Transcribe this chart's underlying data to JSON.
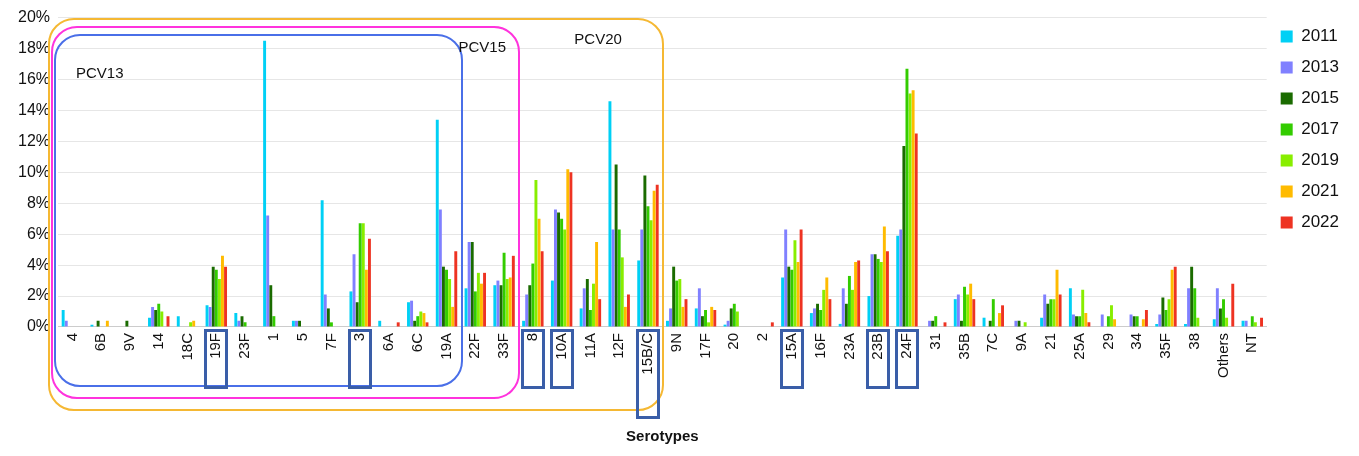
{
  "chart_data": {
    "type": "bar",
    "xlabel": "Serotypes",
    "categories": [
      "4",
      "6B",
      "9V",
      "14",
      "18C",
      "19F",
      "23F",
      "1",
      "5",
      "7F",
      "3",
      "6A",
      "6C",
      "19A",
      "22F",
      "33F",
      "8",
      "10A",
      "11A",
      "12F",
      "15B/C",
      "9N",
      "17F",
      "20",
      "2",
      "15A",
      "16F",
      "23A",
      "23B",
      "24F",
      "31",
      "35B",
      "7C",
      "9A",
      "21",
      "25A",
      "29",
      "34",
      "35F",
      "38",
      "Others",
      "NT"
    ],
    "series": [
      {
        "name": "2011",
        "color": "#00d0f5",
        "values": [
          1.1,
          0.15,
          0,
          0.6,
          0.7,
          1.4,
          0.9,
          18.5,
          0.4,
          8.2,
          2.3,
          0.4,
          1.6,
          13.4,
          2.5,
          2.7,
          0.4,
          3.0,
          1.2,
          14.6,
          4.3,
          0.4,
          1.2,
          0.15,
          0,
          3.2,
          0.9,
          0.2,
          2.0,
          5.9,
          0,
          1.8,
          0.6,
          0,
          0.6,
          2.5,
          0,
          0,
          0.2,
          0.2,
          0.5,
          0.4
        ]
      },
      {
        "name": "2013",
        "color": "#8080ff",
        "values": [
          0.4,
          0,
          0,
          1.3,
          0,
          1.3,
          0.4,
          7.2,
          0.4,
          2.1,
          4.7,
          0,
          1.7,
          7.6,
          5.5,
          3.0,
          2.1,
          7.6,
          2.5,
          6.3,
          6.3,
          1.2,
          2.5,
          0.4,
          0,
          6.3,
          1.2,
          2.5,
          4.7,
          6.3,
          0.4,
          2.1,
          0,
          0.4,
          2.1,
          0.8,
          0.8,
          0.8,
          0.8,
          2.5,
          2.5,
          0.4
        ]
      },
      {
        "name": "2015",
        "color": "#1a6b00",
        "values": [
          0,
          0.4,
          0.4,
          1.1,
          0,
          3.9,
          0.7,
          2.7,
          0.4,
          1.2,
          1.6,
          0,
          0.4,
          3.9,
          5.5,
          2.7,
          2.7,
          7.4,
          3.1,
          10.5,
          9.8,
          3.9,
          0.7,
          1.2,
          0,
          3.9,
          1.5,
          1.5,
          4.7,
          11.7,
          0.4,
          0.4,
          0.4,
          0.4,
          1.5,
          0.7,
          0,
          0.7,
          1.9,
          3.9,
          1.2,
          0
        ]
      },
      {
        "name": "2017",
        "color": "#33cc00",
        "values": [
          0,
          0,
          0,
          1.5,
          0,
          3.7,
          0.3,
          0.7,
          0,
          0.3,
          6.7,
          0,
          0.7,
          3.7,
          2.3,
          4.8,
          4.1,
          7.0,
          1.1,
          6.3,
          7.8,
          3.0,
          1.1,
          1.5,
          0,
          3.7,
          1.1,
          3.3,
          4.4,
          16.7,
          0.7,
          2.6,
          1.8,
          0,
          1.8,
          0.7,
          0.7,
          0.7,
          1.1,
          2.5,
          1.8,
          0.7
        ]
      },
      {
        "name": "2019",
        "color": "#88ee00",
        "values": [
          0,
          0,
          0,
          1.0,
          0.3,
          3.1,
          0,
          0,
          0,
          0,
          6.7,
          0,
          1.0,
          3.1,
          3.5,
          3.1,
          9.5,
          6.3,
          2.8,
          4.5,
          6.9,
          3.1,
          0.3,
          1.0,
          0,
          5.6,
          2.4,
          2.4,
          4.2,
          15.1,
          0,
          2.1,
          0,
          0.3,
          1.8,
          2.4,
          1.4,
          0,
          1.8,
          0.6,
          0.6,
          0.3
        ]
      },
      {
        "name": "2021",
        "color": "#ffbb00",
        "values": [
          0,
          0.4,
          0,
          0,
          0.4,
          4.6,
          0,
          0,
          0,
          0,
          3.7,
          0,
          0.9,
          1.3,
          2.8,
          3.2,
          7.0,
          10.2,
          5.5,
          1.3,
          8.8,
          1.3,
          1.3,
          0,
          0,
          4.2,
          3.2,
          4.2,
          6.5,
          15.3,
          0,
          2.8,
          0.9,
          0,
          3.7,
          0.9,
          0.5,
          0.5,
          3.7,
          0,
          0,
          0
        ]
      },
      {
        "name": "2022",
        "color": "#ee3322",
        "values": [
          0,
          0,
          0,
          0.7,
          0,
          3.9,
          0,
          0,
          0,
          0,
          5.7,
          0.3,
          0.3,
          4.9,
          3.5,
          4.6,
          4.9,
          10.0,
          1.8,
          2.1,
          9.2,
          1.8,
          1.1,
          0,
          0.3,
          6.3,
          1.8,
          4.3,
          4.9,
          12.5,
          0.3,
          1.8,
          1.4,
          0,
          2.1,
          0.3,
          0,
          1.1,
          3.9,
          0,
          2.8,
          0.6
        ]
      }
    ],
    "ylim": [
      0,
      20
    ],
    "yticks": [
      {
        "value": 0,
        "label": "0%"
      },
      {
        "value": 2,
        "label": "2%"
      },
      {
        "value": 4,
        "label": "4%"
      },
      {
        "value": 6,
        "label": "6%"
      },
      {
        "value": 8,
        "label": "8%"
      },
      {
        "value": 10,
        "label": "10%"
      },
      {
        "value": 12,
        "label": "12%"
      },
      {
        "value": 14,
        "label": "14%"
      },
      {
        "value": 16,
        "label": "16%"
      },
      {
        "value": 18,
        "label": "18%"
      },
      {
        "value": 20,
        "label": "20%"
      }
    ],
    "grid": "y",
    "legend": "right",
    "annotations": [
      "PCV13",
      "PCV15",
      "PCV20"
    ]
  }
}
